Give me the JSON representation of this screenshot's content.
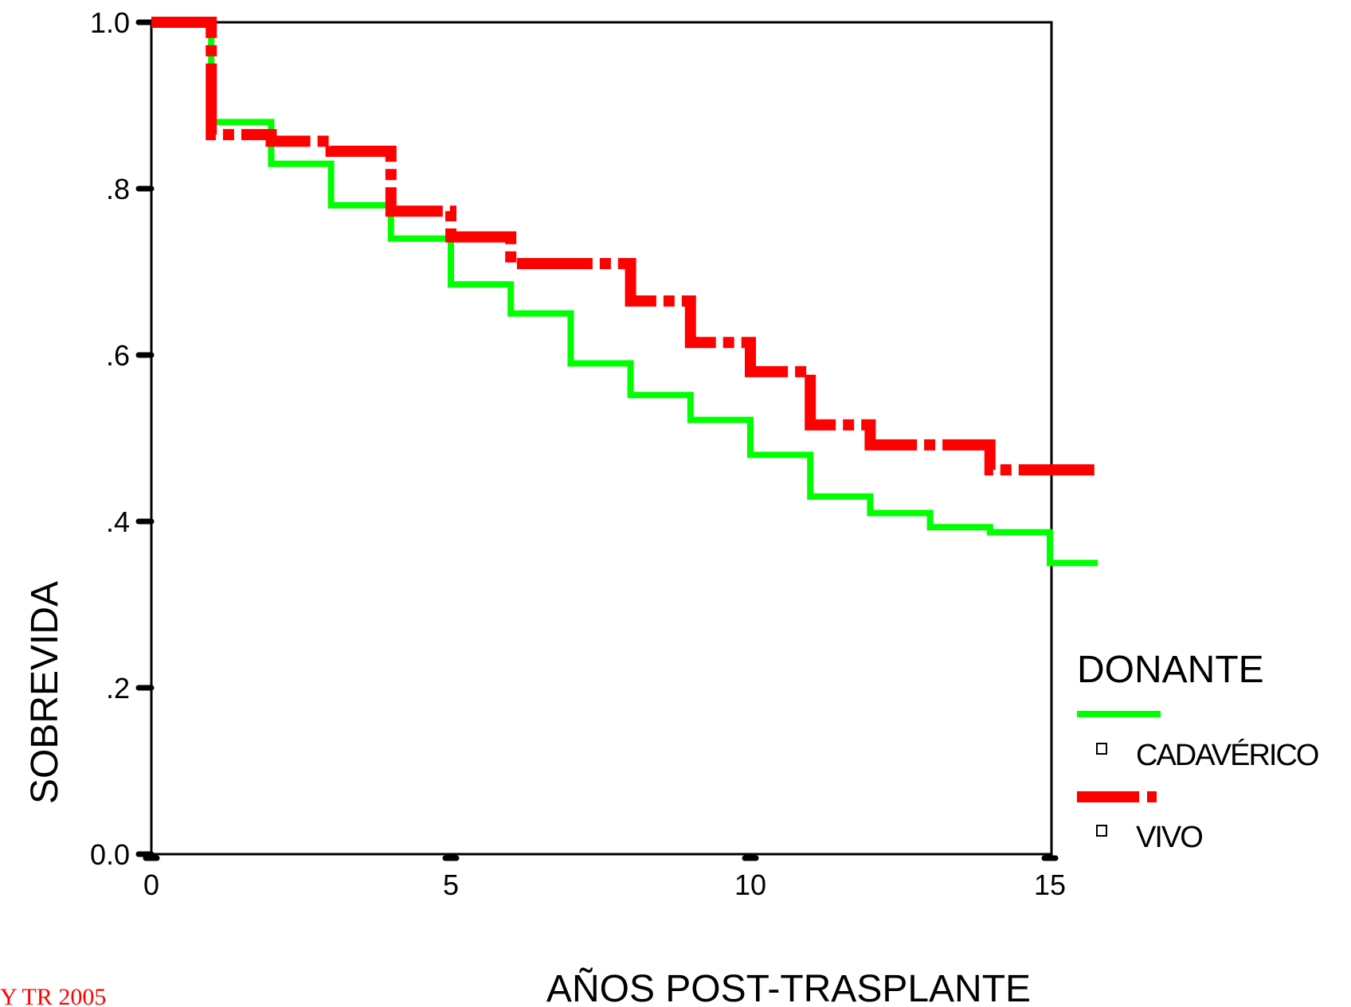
{
  "chart_data": {
    "type": "line",
    "step": true,
    "xlabel": "AÑOS POST-TRASPLANTE",
    "ylabel": "SOBREVIDA",
    "xlim": [
      0,
      15.5
    ],
    "ylim": [
      0,
      1.0
    ],
    "x_ticks": [
      0,
      5,
      10,
      15
    ],
    "x_tick_labels": [
      "0",
      "5",
      "10",
      "15"
    ],
    "y_ticks": [
      0,
      0.2,
      0.4,
      0.6,
      0.8,
      1.0
    ],
    "y_tick_labels": [
      "0.0",
      ".2",
      ".4",
      ".6",
      ".8",
      "1.0"
    ],
    "grid": false,
    "legend": {
      "title": "DONANTE",
      "placement": "right"
    },
    "series": [
      {
        "name": "CADAVÉRICO",
        "color": "#00ff00",
        "style": "solid",
        "points": [
          [
            0,
            1.0
          ],
          [
            1,
            1.0
          ],
          [
            1,
            0.88
          ],
          [
            2,
            0.88
          ],
          [
            2,
            0.83
          ],
          [
            3,
            0.83
          ],
          [
            3,
            0.78
          ],
          [
            4,
            0.78
          ],
          [
            4,
            0.74
          ],
          [
            5,
            0.74
          ],
          [
            5,
            0.685
          ],
          [
            6,
            0.685
          ],
          [
            6,
            0.65
          ],
          [
            7,
            0.65
          ],
          [
            7,
            0.59
          ],
          [
            8,
            0.59
          ],
          [
            8,
            0.552
          ],
          [
            9,
            0.552
          ],
          [
            9,
            0.522
          ],
          [
            10,
            0.522
          ],
          [
            10,
            0.48
          ],
          [
            11,
            0.48
          ],
          [
            11,
            0.43
          ],
          [
            12,
            0.43
          ],
          [
            12,
            0.41
          ],
          [
            13,
            0.41
          ],
          [
            13,
            0.393
          ],
          [
            14,
            0.393
          ],
          [
            14,
            0.387
          ],
          [
            15,
            0.387
          ],
          [
            15,
            0.35
          ],
          [
            15.8,
            0.35
          ]
        ]
      },
      {
        "name": "VIVO",
        "color": "#ff0000",
        "style": "dashed",
        "points": [
          [
            0,
            1.0
          ],
          [
            1,
            1.0
          ],
          [
            1,
            0.865
          ],
          [
            2,
            0.865
          ],
          [
            2,
            0.857
          ],
          [
            3,
            0.857
          ],
          [
            3,
            0.845
          ],
          [
            4,
            0.845
          ],
          [
            4,
            0.773
          ],
          [
            5,
            0.773
          ],
          [
            5,
            0.742
          ],
          [
            6,
            0.742
          ],
          [
            6,
            0.71
          ],
          [
            8,
            0.71
          ],
          [
            8,
            0.665
          ],
          [
            9,
            0.665
          ],
          [
            9,
            0.615
          ],
          [
            10,
            0.615
          ],
          [
            10,
            0.58
          ],
          [
            11,
            0.58
          ],
          [
            11,
            0.516
          ],
          [
            12,
            0.516
          ],
          [
            12,
            0.492
          ],
          [
            14,
            0.492
          ],
          [
            14,
            0.462
          ],
          [
            15.8,
            0.462
          ]
        ]
      }
    ]
  },
  "footer": {
    "text": "Y TR 2005"
  }
}
